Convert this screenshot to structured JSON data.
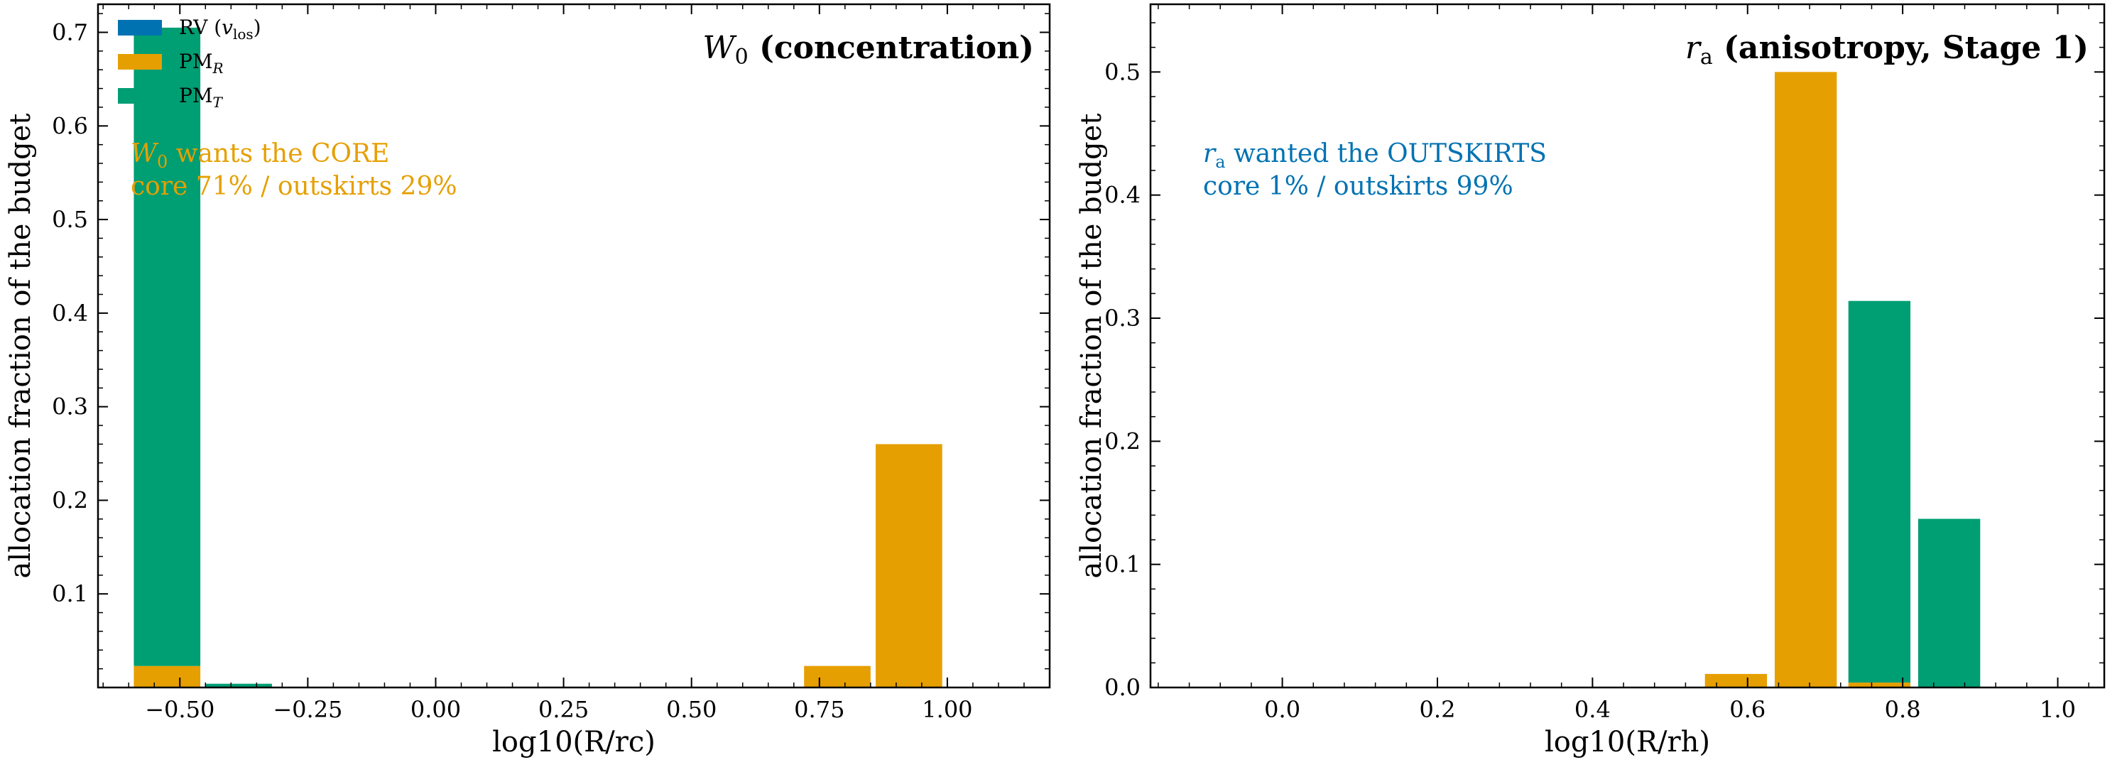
{
  "colors": {
    "RV": "#0072B2",
    "PM_R": "#E69F00",
    "PM_T": "#009E73"
  },
  "chart_data": [
    {
      "type": "bar",
      "stacked": true,
      "title_symbol": "W",
      "title_symbol_sub": "0",
      "title": "(concentration)",
      "xlabel": "log10(R/rc)",
      "ylabel": "allocation fraction of the budget",
      "xlim": [
        -0.66,
        1.2
      ],
      "ylim": [
        0,
        0.73
      ],
      "xticks": [
        -0.5,
        -0.25,
        0.0,
        0.25,
        0.5,
        0.75,
        1.0
      ],
      "xtick_labels": [
        "−0.50",
        "−0.25",
        "0.00",
        "0.25",
        "0.50",
        "0.75",
        "1.00"
      ],
      "yticks": [
        0.1,
        0.2,
        0.3,
        0.4,
        0.5,
        0.6,
        0.7
      ],
      "ytick_labels": [
        "0.1",
        "0.2",
        "0.3",
        "0.4",
        "0.5",
        "0.6",
        "0.7"
      ],
      "bar_width": 0.13,
      "x": [
        -0.525,
        -0.385,
        0.785,
        0.925
      ],
      "series": [
        {
          "name": "RV (v_los)",
          "key": "RV",
          "values": [
            0.0,
            0.0,
            0.0,
            0.0
          ]
        },
        {
          "name": "PM_R",
          "key": "PM_R",
          "values": [
            0.023,
            0.0,
            0.023,
            0.26
          ]
        },
        {
          "name": "PM_T",
          "key": "PM_T",
          "values": [
            0.682,
            0.004,
            0.0,
            0.0
          ]
        }
      ],
      "legend": {
        "placement": "top-left",
        "entries": [
          {
            "key": "RV",
            "label": "RV (",
            "sym": "v",
            "sub": "los",
            "tail": ")"
          },
          {
            "key": "PM_R",
            "label": "PM",
            "sym": "",
            "sub": "R",
            "tail": ""
          },
          {
            "key": "PM_T",
            "label": "PM",
            "sym": "",
            "sub": "T",
            "tail": ""
          }
        ]
      },
      "annotation": {
        "color_key": "PM_R",
        "line1_sym": "W",
        "line1_sub": "0",
        "line1": " wants the CORE",
        "line2": "core 71% / outskirts 29%"
      }
    },
    {
      "type": "bar",
      "stacked": true,
      "title_symbol": "r",
      "title_symbol_sub": "a",
      "title": "(anisotropy, Stage 1)",
      "xlabel": "log10(R/rh)",
      "ylabel": "allocation fraction of the budget",
      "xlim": [
        -0.17,
        1.06
      ],
      "ylim": [
        0,
        0.555
      ],
      "xticks": [
        0.0,
        0.2,
        0.4,
        0.6,
        0.8,
        1.0
      ],
      "xtick_labels": [
        "0.0",
        "0.2",
        "0.4",
        "0.6",
        "0.8",
        "1.0"
      ],
      "yticks": [
        0.0,
        0.1,
        0.2,
        0.3,
        0.4,
        0.5
      ],
      "ytick_labels": [
        "0.0",
        "0.1",
        "0.2",
        "0.3",
        "0.4",
        "0.5"
      ],
      "bar_width": 0.08,
      "x": [
        0.585,
        0.675,
        0.77,
        0.86
      ],
      "series": [
        {
          "name": "RV",
          "key": "RV",
          "values": [
            0.0,
            0.0,
            0.0,
            0.0
          ]
        },
        {
          "name": "PM_R",
          "key": "PM_R",
          "values": [
            0.011,
            0.5,
            0.004,
            0.0
          ]
        },
        {
          "name": "PM_T",
          "key": "PM_T",
          "values": [
            0.0,
            0.0,
            0.31,
            0.137
          ]
        }
      ],
      "annotation": {
        "color_key": "RV",
        "line1_sym": "r",
        "line1_sub": "a",
        "line1": " wanted the OUTSKIRTS",
        "line2": "core 1% / outskirts 99%"
      }
    }
  ]
}
